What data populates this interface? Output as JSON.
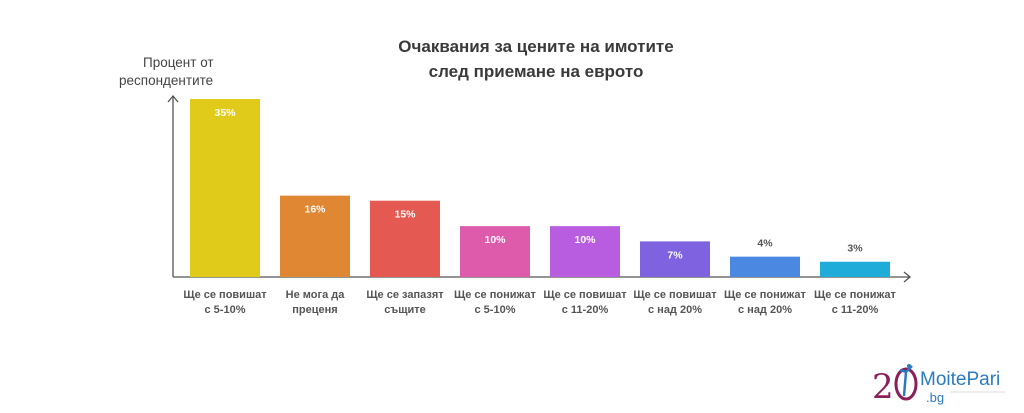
{
  "chart_data": {
    "type": "bar",
    "title": [
      "Очаквания за цените на имотите",
      "след приемане на еврото"
    ],
    "ylabel": [
      "Процент от",
      "респондентите"
    ],
    "xlabel": "",
    "categories": [
      [
        "Ще се повишат",
        "с 5-10%"
      ],
      [
        "Не мога да",
        "преценя"
      ],
      [
        "Ще се запазят",
        "същите"
      ],
      [
        "Ще се понижат",
        "с 5-10%"
      ],
      [
        "Ще се повишат",
        "с 11-20%"
      ],
      [
        "Ще се повишат",
        "с над 20%"
      ],
      [
        "Ще се понижат",
        "с над 20%"
      ],
      [
        "Ще се понижат",
        "с 11-20%"
      ]
    ],
    "values": [
      35,
      16,
      15,
      10,
      10,
      7,
      4,
      3
    ],
    "value_labels": [
      "35%",
      "16%",
      "15%",
      "10%",
      "10%",
      "7%",
      "4%",
      "3%"
    ],
    "colors": [
      "#E0CB1A",
      "#E08733",
      "#E45A53",
      "#DE5AAA",
      "#B85DE0",
      "#7E62E0",
      "#4A88E2",
      "#1FACD8"
    ],
    "ylim": [
      0,
      35
    ],
    "grid": false
  },
  "logo": {
    "number": "20",
    "brand": "MoitePari",
    "domain": ".bg"
  }
}
